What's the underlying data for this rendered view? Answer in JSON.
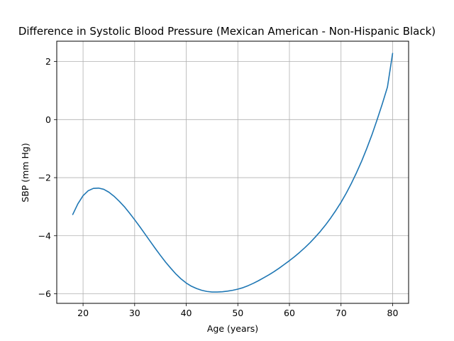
{
  "chart_data": {
    "type": "line",
    "title": "Difference in Systolic Blood Pressure (Mexican American - Non-Hispanic Black)",
    "xlabel": "Age (years)",
    "ylabel": "SBP (mm Hg)",
    "xlim": [
      14.9,
      83.1
    ],
    "ylim": [
      -6.33,
      2.7
    ],
    "xticks": [
      20,
      30,
      40,
      50,
      60,
      70,
      80
    ],
    "yticks": [
      -6,
      -4,
      -2,
      0,
      2
    ],
    "ytick_labels": [
      "−6",
      "−4",
      "−2",
      "0",
      "2"
    ],
    "grid": true,
    "series": [
      {
        "color": "#1f77b4",
        "x": [
          18,
          19,
          20,
          21,
          22,
          23,
          24,
          25,
          26,
          27,
          28,
          29,
          30,
          31,
          32,
          33,
          34,
          35,
          36,
          37,
          38,
          39,
          40,
          41,
          42,
          43,
          44,
          45,
          46,
          47,
          48,
          49,
          50,
          51,
          52,
          53,
          54,
          55,
          56,
          57,
          58,
          59,
          60,
          61,
          62,
          63,
          64,
          65,
          66,
          67,
          68,
          69,
          70,
          71,
          72,
          73,
          74,
          75,
          76,
          77,
          78,
          79,
          80
        ],
        "y": [
          -3.27,
          -2.9,
          -2.62,
          -2.45,
          -2.37,
          -2.36,
          -2.4,
          -2.5,
          -2.64,
          -2.81,
          -3.0,
          -3.22,
          -3.45,
          -3.69,
          -3.94,
          -4.19,
          -4.44,
          -4.68,
          -4.91,
          -5.12,
          -5.32,
          -5.49,
          -5.63,
          -5.74,
          -5.82,
          -5.88,
          -5.92,
          -5.94,
          -5.94,
          -5.93,
          -5.91,
          -5.88,
          -5.84,
          -5.79,
          -5.72,
          -5.64,
          -5.55,
          -5.45,
          -5.35,
          -5.24,
          -5.12,
          -4.99,
          -4.86,
          -4.72,
          -4.57,
          -4.41,
          -4.24,
          -4.05,
          -3.85,
          -3.63,
          -3.39,
          -3.13,
          -2.85,
          -2.54,
          -2.2,
          -1.83,
          -1.43,
          -0.99,
          -0.52,
          0.0,
          0.54,
          1.12,
          2.28
        ]
      }
    ]
  }
}
